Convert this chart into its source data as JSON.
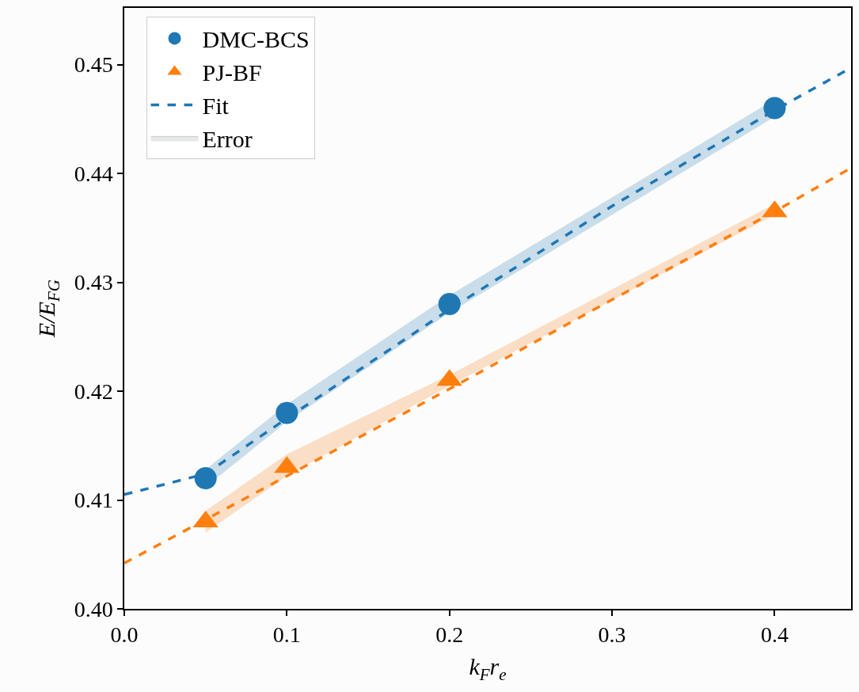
{
  "chart_data": {
    "type": "scatter",
    "xlabel": "k$_{F}$r$_{e}$",
    "ylabel": "E/E$_{FG}$",
    "xlim": [
      0,
      0.447
    ],
    "ylim": [
      0.4,
      0.4552
    ],
    "xticks": [
      {
        "value": 0,
        "label": "0.0"
      },
      0.1,
      0.2,
      0.3,
      0.4
    ],
    "yticks": [
      {
        "value": 0.4,
        "label": "0.40"
      },
      0.41,
      0.42,
      0.43,
      0.44,
      0.45
    ],
    "grid": false,
    "legend": "top left",
    "series": [
      {
        "type": "area",
        "name": "Error",
        "color": "#e6e9e7"
      },
      {
        "type": "line",
        "name": "Fit",
        "color": "#1f77b4",
        "line_style": "dashed",
        "marker": "none",
        "x": [
          0,
          0.05,
          0.1,
          0.2,
          0.3,
          0.4,
          0.447
        ],
        "values": [
          0.4105,
          0.4124,
          0.4175,
          0.4275,
          0.437,
          0.4458,
          0.4497
        ]
      },
      {
        "type": "line",
        "color": "#ff7f0e",
        "line_style": "dashed",
        "marker": "none",
        "x": [
          0,
          0.05,
          0.1,
          0.2,
          0.3,
          0.4,
          0.447
        ],
        "values": [
          0.4042,
          0.4082,
          0.4122,
          0.4202,
          0.4284,
          0.4365,
          0.4405
        ]
      },
      {
        "name": "DMC-BCS",
        "color": "#1f77b4",
        "marker": "circle",
        "x": [
          0.05,
          0.1,
          0.2,
          0.4
        ],
        "values": [
          0.412,
          0.418,
          0.428,
          0.446
        ],
        "lower": [
          0.4112,
          0.4172,
          0.4272,
          0.4452
        ],
        "upper": [
          0.4128,
          0.4188,
          0.4288,
          0.4468
        ]
      },
      {
        "name": "PJ-BF",
        "color": "#ff7f0e",
        "marker": "triangle",
        "x": [
          0.05,
          0.1,
          0.2,
          0.4
        ],
        "values": [
          0.408,
          0.413,
          0.421,
          0.4365
        ],
        "lower": [
          0.407,
          0.4122,
          0.4205,
          0.4362
        ],
        "upper": [
          0.409,
          0.4142,
          0.4215,
          0.4372
        ]
      }
    ]
  }
}
